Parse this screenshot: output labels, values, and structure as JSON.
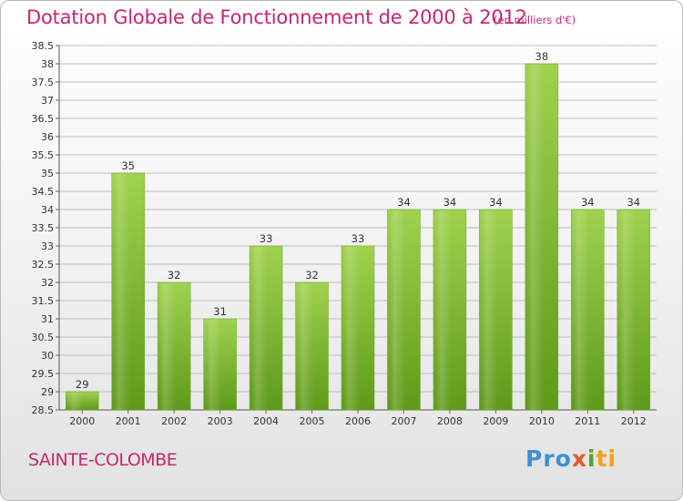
{
  "header": {
    "title": "Dotation Globale de Fonctionnement de 2000 à 2012",
    "subtitle": "(en milliers d'€)"
  },
  "footer": {
    "commune": "SAINTE-COLOMBE",
    "logo": [
      "Pro",
      "x",
      "i",
      "ti"
    ]
  },
  "colors": {
    "title": "#c8266f",
    "bar_light": "#9fd24e",
    "bar_dark": "#5f9a1a",
    "grid": "#bdbdbd"
  },
  "chart_data": {
    "type": "bar",
    "title": "Dotation Globale de Fonctionnement de 2000 à 2012",
    "xlabel": "",
    "ylabel": "",
    "categories": [
      "2000",
      "2001",
      "2002",
      "2003",
      "2004",
      "2005",
      "2006",
      "2007",
      "2008",
      "2009",
      "2010",
      "2011",
      "2012"
    ],
    "values": [
      29,
      35,
      32,
      31,
      33,
      32,
      33,
      34,
      34,
      34,
      38,
      34,
      34
    ],
    "ylim": [
      28.5,
      38.5
    ],
    "yticks": [
      "28.5",
      "29",
      "29.5",
      "30",
      "30.5",
      "31",
      "31.5",
      "32",
      "32.5",
      "33",
      "33.5",
      "34",
      "34.5",
      "35",
      "35.5",
      "36",
      "36.5",
      "37",
      "37.5",
      "38",
      "38.5"
    ],
    "grid": true
  }
}
